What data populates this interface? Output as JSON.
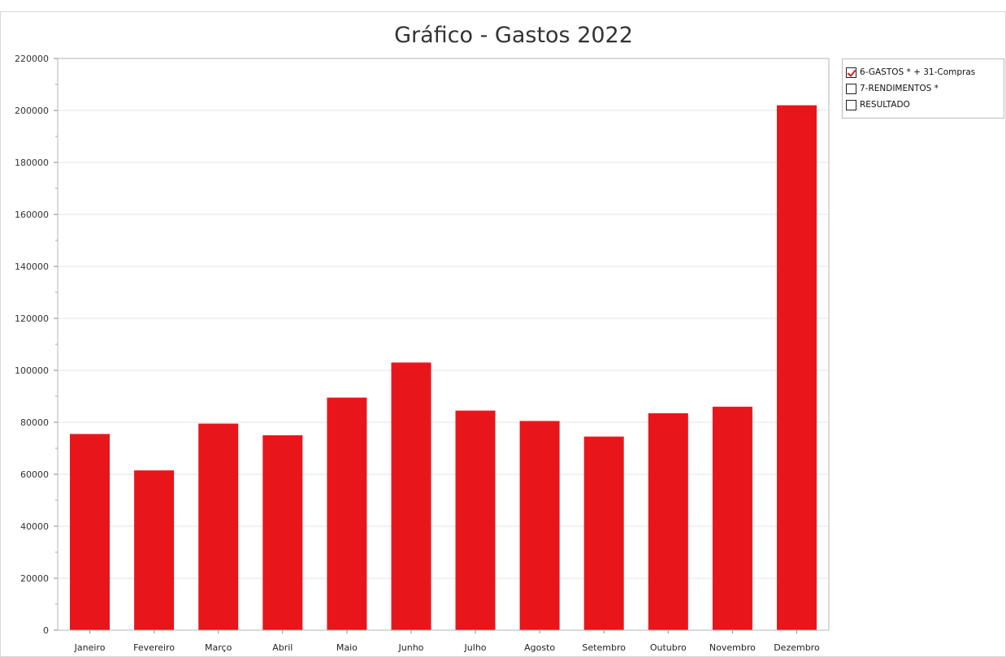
{
  "chart_data": {
    "type": "bar",
    "title": "Gráfico - Gastos 2022",
    "categories": [
      "Janeiro",
      "Fevereiro",
      "Março",
      "Abril",
      "Maio",
      "Junho",
      "Julho",
      "Agosto",
      "Setembro",
      "Outubro",
      "Novembro",
      "Dezembro"
    ],
    "series": [
      {
        "name": "6-GASTOS * + 31-Compras",
        "color": "#e8161b",
        "values": [
          75500,
          61500,
          79500,
          75000,
          89500,
          103000,
          84500,
          80500,
          74500,
          83500,
          86000,
          202000
        ]
      }
    ],
    "xlabel": "",
    "ylabel": "",
    "ylim": [
      0,
      220000
    ],
    "yticks": [
      0,
      20000,
      40000,
      60000,
      80000,
      100000,
      120000,
      140000,
      160000,
      180000,
      200000,
      220000
    ],
    "grid": true,
    "legend_position": "top-right"
  },
  "legend": {
    "items": [
      {
        "label": "6-GASTOS * + 31-Compras",
        "checked": true
      },
      {
        "label": "7-RENDIMENTOS *",
        "checked": false
      },
      {
        "label": "RESULTADO",
        "checked": false
      }
    ]
  }
}
